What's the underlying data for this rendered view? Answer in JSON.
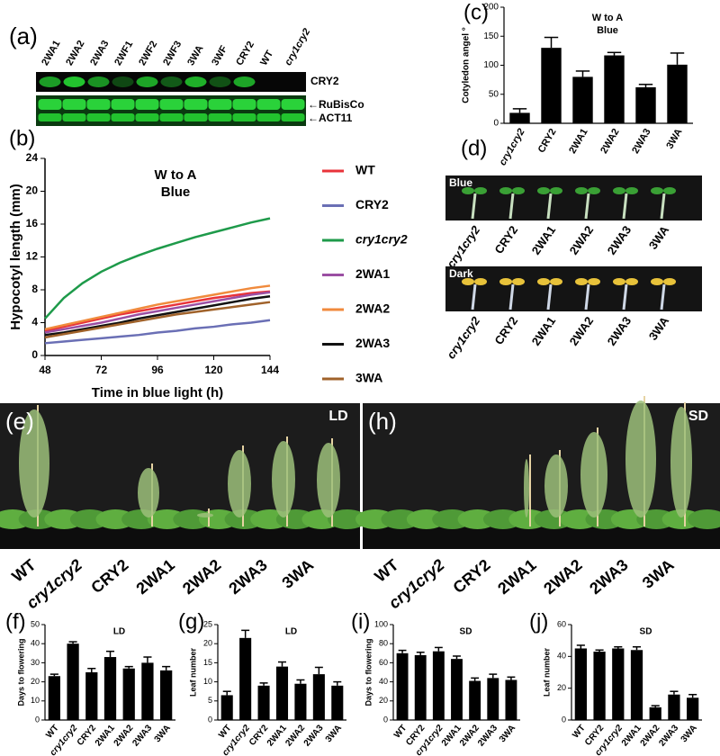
{
  "blot": {
    "panel_label": "(a)",
    "lanes": [
      "2WA1",
      "2WA2",
      "2WA3",
      "2WF1",
      "2WF2",
      "2WF3",
      "3WA",
      "3WF",
      "CRY2",
      "WT",
      "cry1cry2"
    ],
    "bands": [
      "CRY2",
      "←RuBisCo",
      "←ACT11"
    ]
  },
  "seedlings": {
    "panel_label": "(d)",
    "conditions": [
      "Blue",
      "Dark"
    ],
    "genotypes": [
      "cry1cry2",
      "CRY2",
      "2WA1",
      "2WA2",
      "2WA3",
      "3WA"
    ]
  },
  "plants": [
    {
      "panel_label": "(e)",
      "condition": "LD",
      "genotypes": [
        "WT",
        "cry1cry2",
        "CRY2",
        "2WA1",
        "2WA2",
        "2WA3",
        "3WA"
      ]
    },
    {
      "panel_label": "(h)",
      "condition": "SD",
      "genotypes": [
        "WT",
        "cry1cry2",
        "CRY2",
        "2WA1",
        "2WA2",
        "2WA3",
        "3WA"
      ]
    }
  ],
  "chart_data": [
    {
      "type": "line",
      "panel_label": "(b)",
      "title": "W to A",
      "subtitle": "Blue",
      "xlabel": "Time in blue light (h)",
      "ylabel": "Hypocotyl length (mm)",
      "x": [
        48,
        56,
        64,
        72,
        80,
        88,
        96,
        104,
        112,
        120,
        128,
        136,
        144
      ],
      "xlim": [
        48,
        144
      ],
      "xticks": [
        48,
        72,
        96,
        120,
        144
      ],
      "ylim": [
        0,
        24
      ],
      "yticks": [
        0,
        4,
        8,
        12,
        16,
        20,
        24
      ],
      "series": [
        {
          "name": "WT",
          "color": "#e8333a",
          "values": [
            3.0,
            3.5,
            4.0,
            4.5,
            5.0,
            5.4,
            5.8,
            6.2,
            6.6,
            7.0,
            7.3,
            7.6,
            7.8
          ]
        },
        {
          "name": "CRY2",
          "color": "#6a6fb5",
          "values": [
            1.5,
            1.7,
            1.9,
            2.1,
            2.3,
            2.5,
            2.8,
            3.0,
            3.3,
            3.5,
            3.8,
            4.0,
            4.3
          ]
        },
        {
          "name": "cry1cry2",
          "color": "#1e9a4a",
          "values": [
            4.5,
            7.0,
            8.8,
            10.2,
            11.3,
            12.2,
            13.0,
            13.7,
            14.4,
            15.0,
            15.6,
            16.2,
            16.7
          ]
        },
        {
          "name": "2WA1",
          "color": "#9b4fa3",
          "values": [
            2.8,
            3.2,
            3.6,
            4.0,
            4.5,
            5.0,
            5.4,
            5.8,
            6.2,
            6.6,
            7.0,
            7.4,
            7.7
          ]
        },
        {
          "name": "2WA2",
          "color": "#f08a3c",
          "values": [
            3.2,
            3.7,
            4.2,
            4.7,
            5.2,
            5.7,
            6.2,
            6.6,
            7.0,
            7.4,
            7.8,
            8.2,
            8.5
          ]
        },
        {
          "name": "2WA3",
          "color": "#111111",
          "values": [
            2.5,
            2.8,
            3.2,
            3.6,
            4.0,
            4.5,
            4.9,
            5.3,
            5.7,
            6.1,
            6.5,
            6.9,
            7.2
          ]
        },
        {
          "name": "3WA",
          "color": "#a0622a",
          "values": [
            2.2,
            2.6,
            3.0,
            3.4,
            3.8,
            4.2,
            4.6,
            5.0,
            5.3,
            5.6,
            5.9,
            6.2,
            6.5
          ]
        }
      ]
    },
    {
      "type": "bar",
      "panel_label": "(c)",
      "title": "W to A",
      "subtitle": "Blue",
      "ylabel": "Cotyledon angel °",
      "color": "#000000",
      "categories": [
        "cry1cry2",
        "CRY2",
        "2WA1",
        "2WA2",
        "2WA3",
        "3WA"
      ],
      "values": [
        18,
        130,
        80,
        117,
        62,
        101
      ],
      "errors": [
        7,
        18,
        10,
        5,
        5,
        20
      ],
      "ylim": [
        0,
        200
      ],
      "yticks": [
        0,
        50,
        100,
        150,
        200
      ]
    },
    {
      "type": "bar",
      "panel_label": "(f)",
      "title": "LD",
      "ylabel": "Days to flowering",
      "color": "#000000",
      "categories": [
        "WT",
        "cry1cry2",
        "CRY2",
        "2WA1",
        "2WA2",
        "2WA3",
        "3WA"
      ],
      "values": [
        23,
        40,
        25,
        33,
        27,
        30,
        26
      ],
      "errors": [
        1,
        1,
        2,
        3,
        1,
        3,
        2
      ],
      "ylim": [
        0,
        50
      ],
      "yticks": [
        0,
        10,
        20,
        30,
        40,
        50
      ]
    },
    {
      "type": "bar",
      "panel_label": "(g)",
      "title": "LD",
      "ylabel": "Leaf number",
      "color": "#000000",
      "categories": [
        "WT",
        "cry1cry2",
        "CRY2",
        "2WA1",
        "2WA2",
        "2WA3",
        "3WA"
      ],
      "values": [
        6.5,
        21.5,
        9,
        14,
        9.5,
        12,
        9
      ],
      "errors": [
        1,
        2,
        0.7,
        1.2,
        1,
        1.8,
        1
      ],
      "ylim": [
        0,
        25
      ],
      "yticks": [
        0,
        5,
        10,
        15,
        20,
        25
      ]
    },
    {
      "type": "bar",
      "panel_label": "(i)",
      "title": "SD",
      "ylabel": "Days to flowering",
      "color": "#000000",
      "categories": [
        "WT",
        "CRY2",
        "cry1cry2",
        "2WA1",
        "2WA2",
        "2WA3",
        "3WA"
      ],
      "values": [
        70,
        68,
        72,
        64,
        41,
        44,
        42
      ],
      "errors": [
        3,
        3,
        4,
        3,
        3,
        4,
        3
      ],
      "ylim": [
        0,
        100
      ],
      "yticks": [
        0,
        20,
        40,
        60,
        80,
        100
      ]
    },
    {
      "type": "bar",
      "panel_label": "(j)",
      "title": "SD",
      "ylabel": "Leaf number",
      "color": "#000000",
      "categories": [
        "WT",
        "CRY2",
        "cry1cry2",
        "2WA1",
        "2WA2",
        "2WA3",
        "3WA"
      ],
      "values": [
        45,
        43,
        45,
        44,
        8,
        16,
        14
      ],
      "errors": [
        2,
        1,
        1,
        2,
        1,
        2,
        2
      ],
      "ylim": [
        0,
        60
      ],
      "yticks": [
        0,
        20,
        40,
        60
      ]
    }
  ]
}
